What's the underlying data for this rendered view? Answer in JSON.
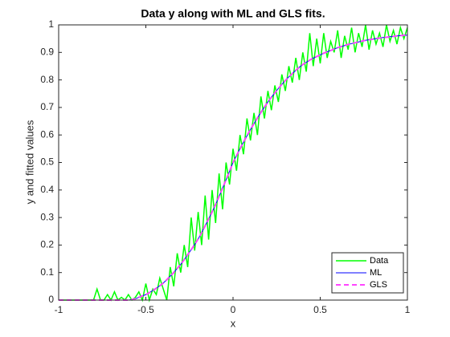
{
  "chart_data": {
    "type": "line",
    "title": "Data y along with ML and GLS fits.",
    "x_label": "x",
    "y_label": "y and fitted values",
    "x": [
      -1,
      -0.98,
      -0.96,
      -0.94,
      -0.92,
      -0.9,
      -0.88,
      -0.86,
      -0.84,
      -0.82,
      -0.8,
      -0.78,
      -0.76,
      -0.74,
      -0.72,
      -0.7,
      -0.68,
      -0.66,
      -0.64,
      -0.62,
      -0.6,
      -0.58,
      -0.56,
      -0.54,
      -0.52,
      -0.5,
      -0.48,
      -0.46,
      -0.44,
      -0.42,
      -0.4,
      -0.38,
      -0.36,
      -0.34,
      -0.32,
      -0.3,
      -0.28,
      -0.26,
      -0.24,
      -0.22,
      -0.2,
      -0.18,
      -0.16,
      -0.14,
      -0.12,
      -0.1,
      -0.08,
      -0.06,
      -0.04,
      -0.02,
      0,
      0.02,
      0.04,
      0.06,
      0.08,
      0.1,
      0.12,
      0.14,
      0.16,
      0.18,
      0.2,
      0.22,
      0.24,
      0.26,
      0.28,
      0.3,
      0.32,
      0.34,
      0.36,
      0.38,
      0.4,
      0.42,
      0.44,
      0.46,
      0.48,
      0.5,
      0.52,
      0.54,
      0.56,
      0.58,
      0.6,
      0.62,
      0.64,
      0.66,
      0.68,
      0.7,
      0.72,
      0.74,
      0.76,
      0.78,
      0.8,
      0.82,
      0.84,
      0.86,
      0.88,
      0.9,
      0.92,
      0.94,
      0.96,
      0.98,
      1
    ],
    "series": [
      {
        "name": "Data",
        "color": "#00ff00",
        "linestyle": "-",
        "values": [
          0,
          0,
          0,
          0,
          0,
          0,
          0,
          0,
          0,
          0,
          0,
          0.04,
          0,
          0,
          0.02,
          0,
          0.03,
          0,
          0.01,
          0,
          0.02,
          0,
          0.01,
          0.03,
          0,
          0.06,
          0,
          0.04,
          0.02,
          0.08,
          0.04,
          0,
          0.12,
          0.05,
          0.17,
          0.1,
          0.2,
          0.12,
          0.3,
          0.18,
          0.32,
          0.2,
          0.38,
          0.22,
          0.4,
          0.28,
          0.46,
          0.33,
          0.5,
          0.42,
          0.55,
          0.47,
          0.6,
          0.53,
          0.66,
          0.58,
          0.68,
          0.6,
          0.74,
          0.66,
          0.76,
          0.69,
          0.78,
          0.72,
          0.82,
          0.76,
          0.85,
          0.79,
          0.88,
          0.8,
          0.9,
          0.83,
          0.97,
          0.85,
          0.95,
          0.86,
          0.97,
          0.88,
          0.94,
          0.9,
          0.98,
          0.88,
          0.96,
          0.91,
          0.99,
          0.9,
          0.97,
          0.92,
          1,
          0.91,
          0.98,
          0.93,
          0.97,
          0.92,
          1,
          0.94,
          0.98,
          0.93,
          0.99,
          0.95,
          0.99
        ]
      },
      {
        "name": "ML",
        "color": "#0000ff",
        "linestyle": "-",
        "values": [
          0,
          0,
          0,
          0,
          0,
          0,
          0,
          0,
          0,
          0,
          0,
          0,
          0,
          0,
          0,
          0,
          0,
          0,
          0,
          0,
          0,
          0.002,
          0.005,
          0.01,
          0.015,
          0.02,
          0.027,
          0.035,
          0.043,
          0.052,
          0.062,
          0.074,
          0.087,
          0.1,
          0.115,
          0.13,
          0.147,
          0.165,
          0.183,
          0.202,
          0.222,
          0.245,
          0.27,
          0.295,
          0.32,
          0.347,
          0.377,
          0.407,
          0.437,
          0.468,
          0.5,
          0.525,
          0.55,
          0.574,
          0.597,
          0.62,
          0.641,
          0.662,
          0.682,
          0.701,
          0.72,
          0.737,
          0.753,
          0.769,
          0.784,
          0.798,
          0.811,
          0.823,
          0.835,
          0.846,
          0.856,
          0.864,
          0.872,
          0.879,
          0.885,
          0.891,
          0.897,
          0.902,
          0.907,
          0.912,
          0.917,
          0.921,
          0.925,
          0.929,
          0.932,
          0.935,
          0.938,
          0.941,
          0.944,
          0.946,
          0.948,
          0.95,
          0.952,
          0.954,
          0.955,
          0.957,
          0.958,
          0.96,
          0.961,
          0.962,
          0.963
        ]
      },
      {
        "name": "GLS",
        "color": "#ff44ff",
        "linestyle": "--",
        "values": [
          0,
          0,
          0,
          0,
          0,
          0,
          0,
          0,
          0,
          0,
          0,
          0,
          0,
          0,
          0,
          0,
          0,
          0,
          0,
          0,
          0,
          0.002,
          0.005,
          0.01,
          0.015,
          0.02,
          0.027,
          0.035,
          0.043,
          0.052,
          0.062,
          0.074,
          0.087,
          0.1,
          0.115,
          0.13,
          0.147,
          0.165,
          0.183,
          0.202,
          0.222,
          0.245,
          0.27,
          0.295,
          0.32,
          0.347,
          0.377,
          0.407,
          0.437,
          0.468,
          0.5,
          0.525,
          0.55,
          0.574,
          0.597,
          0.62,
          0.641,
          0.662,
          0.682,
          0.701,
          0.72,
          0.737,
          0.753,
          0.769,
          0.784,
          0.798,
          0.811,
          0.823,
          0.835,
          0.846,
          0.856,
          0.864,
          0.872,
          0.879,
          0.885,
          0.891,
          0.897,
          0.902,
          0.907,
          0.912,
          0.917,
          0.921,
          0.925,
          0.929,
          0.932,
          0.935,
          0.938,
          0.941,
          0.944,
          0.946,
          0.948,
          0.95,
          0.952,
          0.954,
          0.955,
          0.957,
          0.958,
          0.96,
          0.961,
          0.962,
          0.963
        ]
      }
    ],
    "xlim": [
      -1,
      1
    ],
    "ylim": [
      0,
      1
    ],
    "xticks": [
      -1,
      -0.5,
      0,
      0.5,
      1
    ],
    "yticks": [
      0,
      0.1,
      0.2,
      0.3,
      0.4,
      0.5,
      0.6,
      0.7,
      0.8,
      0.9,
      1
    ],
    "grid": false,
    "legend": "southeast"
  }
}
